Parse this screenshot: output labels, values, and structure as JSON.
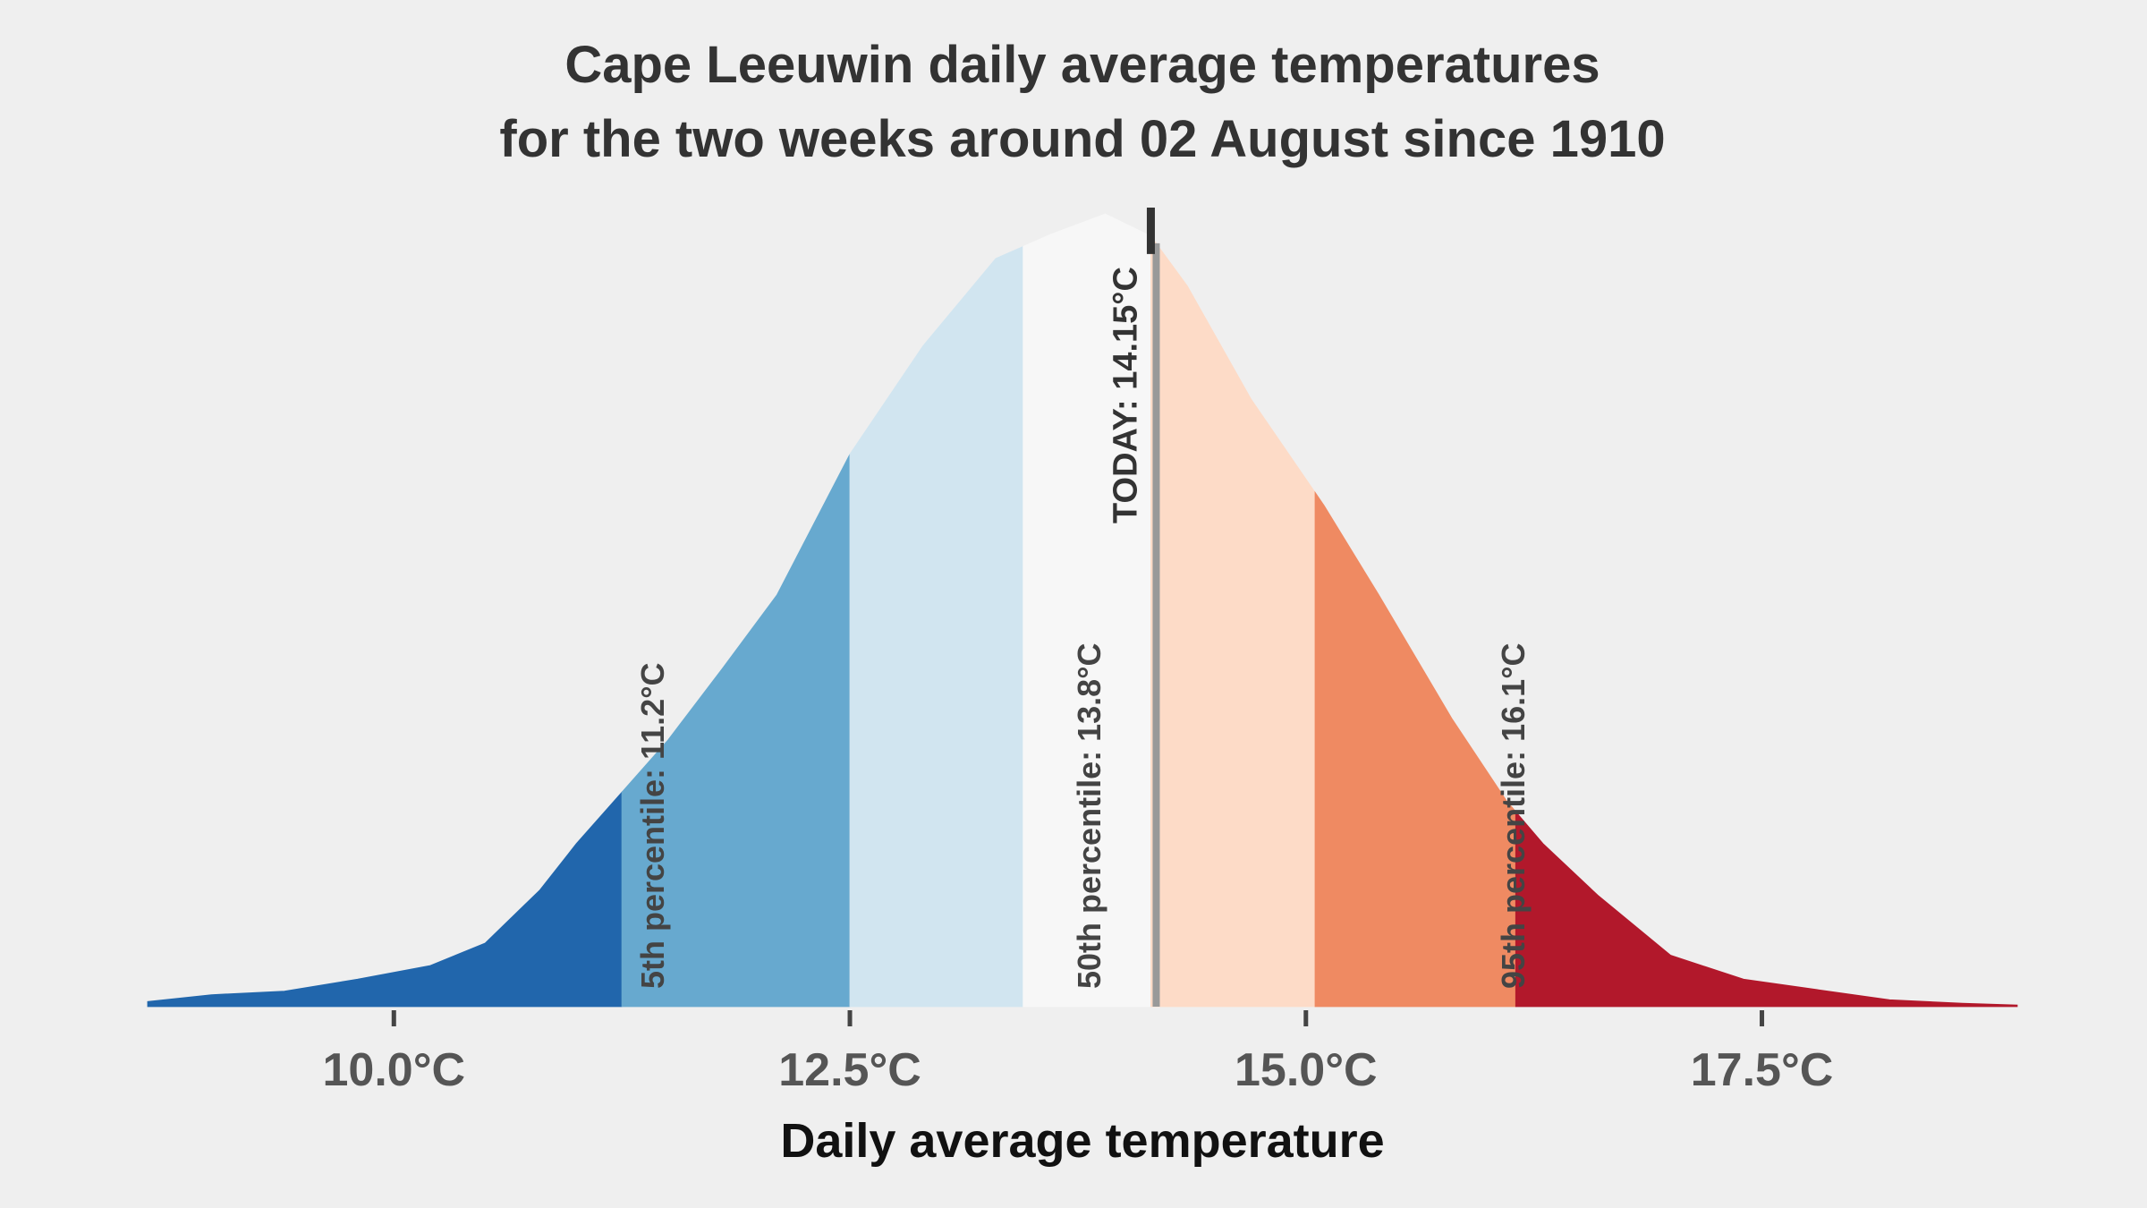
{
  "chart_data": {
    "type": "area",
    "title_lines": [
      "Cape Leeuwin daily average temperatures",
      "for the two weeks around 02 August since 1910"
    ],
    "xlabel": "Daily average temperature",
    "ylabel": "",
    "xlim": [
      8.65,
      18.9
    ],
    "ylim": [
      0,
      0.45
    ],
    "x_ticks": [
      {
        "value": 10.0,
        "label": "10.0°C"
      },
      {
        "value": 12.5,
        "label": "12.5°C"
      },
      {
        "value": 15.0,
        "label": "15.0°C"
      },
      {
        "value": 17.5,
        "label": "17.5°C"
      }
    ],
    "density": {
      "x": [
        8.65,
        9.0,
        9.4,
        9.8,
        10.2,
        10.5,
        10.8,
        11.0,
        11.25,
        11.5,
        11.8,
        12.1,
        12.5,
        12.9,
        13.3,
        13.6,
        13.9,
        14.15,
        14.35,
        14.7,
        15.1,
        15.4,
        15.8,
        16.1,
        16.3,
        16.6,
        17.0,
        17.4,
        17.8,
        18.2,
        18.6,
        18.9
      ],
      "y": [
        0.003,
        0.007,
        0.009,
        0.016,
        0.024,
        0.037,
        0.068,
        0.095,
        0.125,
        0.155,
        0.197,
        0.24,
        0.322,
        0.385,
        0.436,
        0.45,
        0.462,
        0.449,
        0.42,
        0.354,
        0.292,
        0.24,
        0.168,
        0.12,
        0.095,
        0.065,
        0.03,
        0.016,
        0.01,
        0.004,
        0.002,
        0.001
      ]
    },
    "bands": [
      {
        "from": 8.65,
        "to": 11.25,
        "color": "#2166ac"
      },
      {
        "from": 11.25,
        "to": 12.5,
        "color": "#67a9cf"
      },
      {
        "from": 12.5,
        "to": 13.45,
        "color": "#d1e5f0"
      },
      {
        "from": 13.45,
        "to": 14.15,
        "color": "#f7f7f7"
      },
      {
        "from": 14.15,
        "to": 15.05,
        "color": "#fddbc7"
      },
      {
        "from": 15.05,
        "to": 16.15,
        "color": "#ef8a62"
      },
      {
        "from": 16.15,
        "to": 18.9,
        "color": "#b2182b"
      }
    ],
    "percentile_lines": [
      {
        "value": 11.2,
        "label": "5th percentile:  11.2°C"
      },
      {
        "value": 13.8,
        "label": "50th percentile: 13.8°C"
      },
      {
        "value": 16.1,
        "label": "95th percentile:  16.1°C"
      }
    ],
    "today": {
      "value": 14.15,
      "label": "TODAY:  14.15°C"
    },
    "colors": {
      "background": "#efefef",
      "today_line": "#333333",
      "today_shadow": "#999999"
    }
  }
}
